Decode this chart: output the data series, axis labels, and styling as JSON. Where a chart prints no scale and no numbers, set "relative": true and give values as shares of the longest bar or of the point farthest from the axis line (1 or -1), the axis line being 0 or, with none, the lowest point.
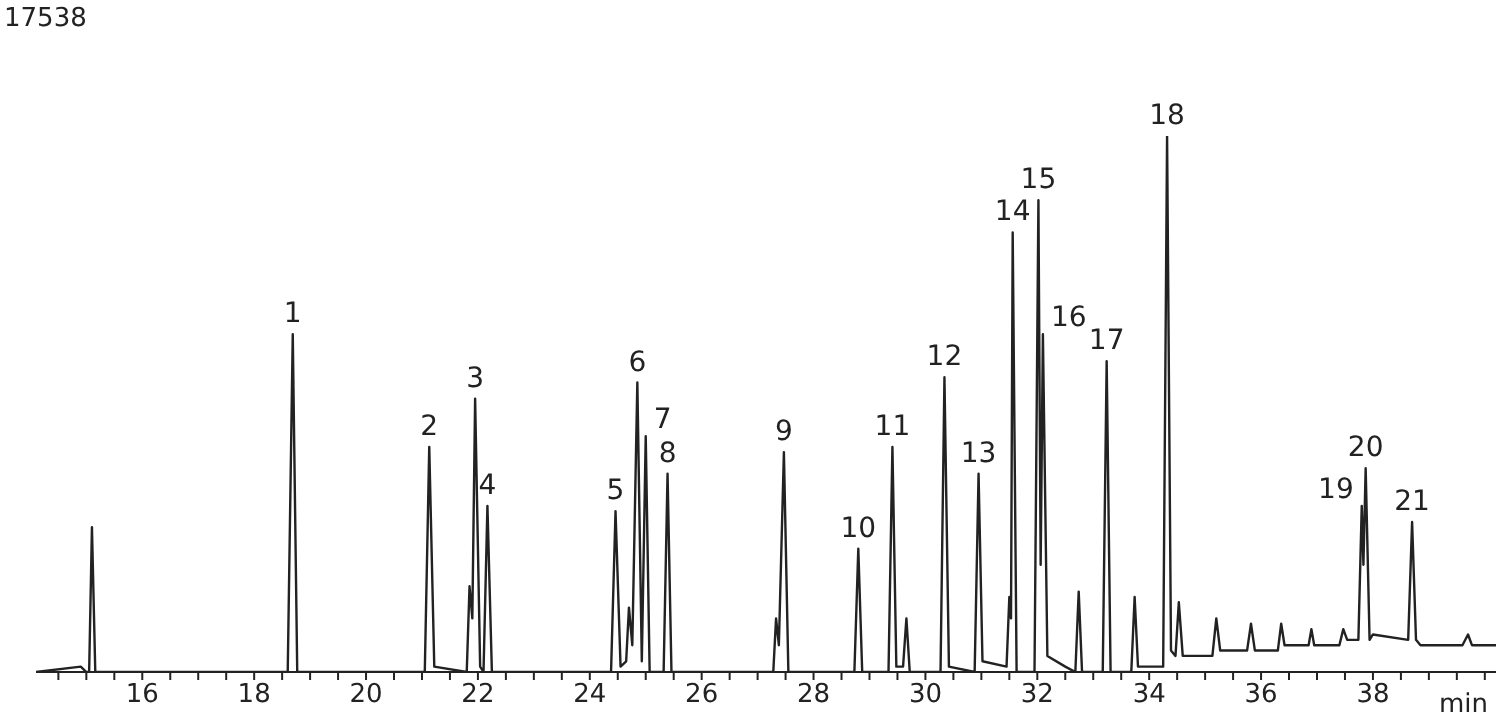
{
  "chart_data": {
    "type": "line",
    "relative": true,
    "xlabel": "min",
    "xlim": [
      14.1,
      40.2
    ],
    "xticks": [
      {
        "value": 14.5,
        "label": null
      },
      {
        "value": 15,
        "label": null
      },
      {
        "value": 15.5,
        "label": null
      },
      16,
      {
        "value": 16.5,
        "label": null
      },
      {
        "value": 17,
        "label": null
      },
      {
        "value": 17.5,
        "label": null
      },
      18,
      {
        "value": 18.5,
        "label": null
      },
      {
        "value": 19,
        "label": null
      },
      {
        "value": 19.5,
        "label": null
      },
      20,
      {
        "value": 20.5,
        "label": null
      },
      {
        "value": 21,
        "label": null
      },
      {
        "value": 21.5,
        "label": null
      },
      22,
      {
        "value": 22.5,
        "label": null
      },
      {
        "value": 23,
        "label": null
      },
      {
        "value": 23.5,
        "label": null
      },
      24,
      {
        "value": 24.5,
        "label": null
      },
      {
        "value": 25,
        "label": null
      },
      {
        "value": 25.5,
        "label": null
      },
      26,
      {
        "value": 26.5,
        "label": null
      },
      {
        "value": 27,
        "label": null
      },
      {
        "value": 27.5,
        "label": null
      },
      28,
      {
        "value": 28.5,
        "label": null
      },
      {
        "value": 29,
        "label": null
      },
      {
        "value": 29.5,
        "label": null
      },
      30,
      {
        "value": 30.5,
        "label": null
      },
      {
        "value": 31,
        "label": null
      },
      {
        "value": 31.5,
        "label": null
      },
      32,
      {
        "value": 32.5,
        "label": null
      },
      {
        "value": 33,
        "label": null
      },
      {
        "value": 33.5,
        "label": null
      },
      34,
      {
        "value": 34.5,
        "label": null
      },
      {
        "value": 35,
        "label": null
      },
      {
        "value": 35.5,
        "label": null
      },
      36,
      {
        "value": 36.5,
        "label": null
      },
      {
        "value": 37,
        "label": null
      },
      {
        "value": 37.5,
        "label": null
      },
      38,
      {
        "value": 38.5,
        "label": null
      },
      {
        "value": 39,
        "label": null
      },
      {
        "value": 39.5,
        "label": null
      },
      {
        "value": 40,
        "label": null
      }
    ],
    "x": [
      14.1,
      14.9,
      15.0,
      15.05,
      15.1,
      15.16,
      18.6,
      18.69,
      18.77,
      21.05,
      21.13,
      21.22,
      21.8,
      21.85,
      21.9,
      21.95,
      22.04,
      22.1,
      22.17,
      22.25,
      24.38,
      24.46,
      24.55,
      24.65,
      24.7,
      24.76,
      24.85,
      24.93,
      25.0,
      25.07,
      25.32,
      25.39,
      25.46,
      27.28,
      27.33,
      27.38,
      27.47,
      27.55,
      28.73,
      28.8,
      28.87,
      29.34,
      29.41,
      29.48,
      29.6,
      29.66,
      29.72,
      30.27,
      30.34,
      30.42,
      30.88,
      30.95,
      31.02,
      31.45,
      31.5,
      31.53,
      31.56,
      31.63,
      31.95,
      32.02,
      32.06,
      32.1,
      32.18,
      32.5,
      32.68,
      32.74,
      32.8,
      33.17,
      33.24,
      33.31,
      33.68,
      33.74,
      33.8,
      34.25,
      34.32,
      34.39,
      34.47,
      34.53,
      34.6,
      35.13,
      35.2,
      35.27,
      35.75,
      35.82,
      35.89,
      36.3,
      36.36,
      36.42,
      36.5,
      36.85,
      36.9,
      36.95,
      37.4,
      37.47,
      37.54,
      37.74,
      37.8,
      37.83,
      37.87,
      37.94,
      38.0,
      38.63,
      38.7,
      38.77,
      38.85,
      39.6,
      39.7,
      39.77,
      40.2
    ],
    "series": [
      {
        "color": "#222222",
        "values": [
          0,
          0.01,
          0,
          0,
          0.27,
          0,
          0,
          0.63,
          0,
          0,
          0.42,
          0.01,
          0,
          0.16,
          0.1,
          0.51,
          0.01,
          0,
          0.31,
          0,
          0,
          0.3,
          0.01,
          0.02,
          0.12,
          0.05,
          0.54,
          0.02,
          0.44,
          0,
          0,
          0.37,
          0,
          0,
          0.1,
          0.05,
          0.41,
          0,
          0,
          0.23,
          0,
          0,
          0.42,
          0.01,
          0.01,
          0.1,
          0,
          0,
          0.55,
          0.01,
          0,
          0.37,
          0.02,
          0.01,
          0.14,
          0.1,
          0.82,
          0,
          0,
          0.88,
          0.2,
          0.63,
          0.03,
          0.01,
          0,
          0.15,
          0,
          0,
          0.58,
          0,
          0,
          0.14,
          0.01,
          0.01,
          1,
          0.04,
          0.03,
          0.13,
          0.03,
          0.03,
          0.1,
          0.04,
          0.04,
          0.09,
          0.04,
          0.04,
          0.09,
          0.05,
          0.05,
          0.05,
          0.08,
          0.05,
          0.05,
          0.08,
          0.06,
          0.06,
          0.31,
          0.2,
          0.38,
          0.06,
          0.07,
          0.06,
          0.28,
          0.06,
          0.05,
          0.05,
          0.07,
          0.05,
          0.05
        ]
      }
    ],
    "marker": "none",
    "annotations": [
      "17538",
      {
        "text": "1",
        "x": 18.69,
        "y": 0.63
      },
      {
        "text": "2",
        "x": 21.13,
        "y": 0.42
      },
      {
        "text": "3",
        "x": 21.95,
        "y": 0.51
      },
      {
        "text": "4",
        "x": 22.17,
        "y": 0.31
      },
      {
        "text": "5",
        "x": 24.46,
        "y": 0.3
      },
      {
        "text": "6",
        "x": 24.85,
        "y": 0.54
      },
      {
        "text": "7",
        "x": 25.0,
        "y": 0.44
      },
      {
        "text": "8",
        "x": 25.39,
        "y": 0.37
      },
      {
        "text": "9",
        "x": 27.47,
        "y": 0.41
      },
      {
        "text": "10",
        "x": 28.8,
        "y": 0.23
      },
      {
        "text": "11",
        "x": 29.41,
        "y": 0.42
      },
      {
        "text": "12",
        "x": 30.34,
        "y": 0.55
      },
      {
        "text": "13",
        "x": 30.95,
        "y": 0.37
      },
      {
        "text": "14",
        "x": 31.56,
        "y": 0.82
      },
      {
        "text": "15",
        "x": 32.02,
        "y": 0.88
      },
      {
        "text": "16",
        "x": 32.1,
        "y": 0.63
      },
      {
        "text": "17",
        "x": 33.24,
        "y": 0.58
      },
      {
        "text": "18",
        "x": 34.32,
        "y": 1
      },
      {
        "text": "19",
        "x": 37.8,
        "y": 0.31
      },
      {
        "text": "20",
        "x": 37.87,
        "y": 0.38
      },
      {
        "text": "21",
        "x": 38.7,
        "y": 0.28
      }
    ]
  }
}
